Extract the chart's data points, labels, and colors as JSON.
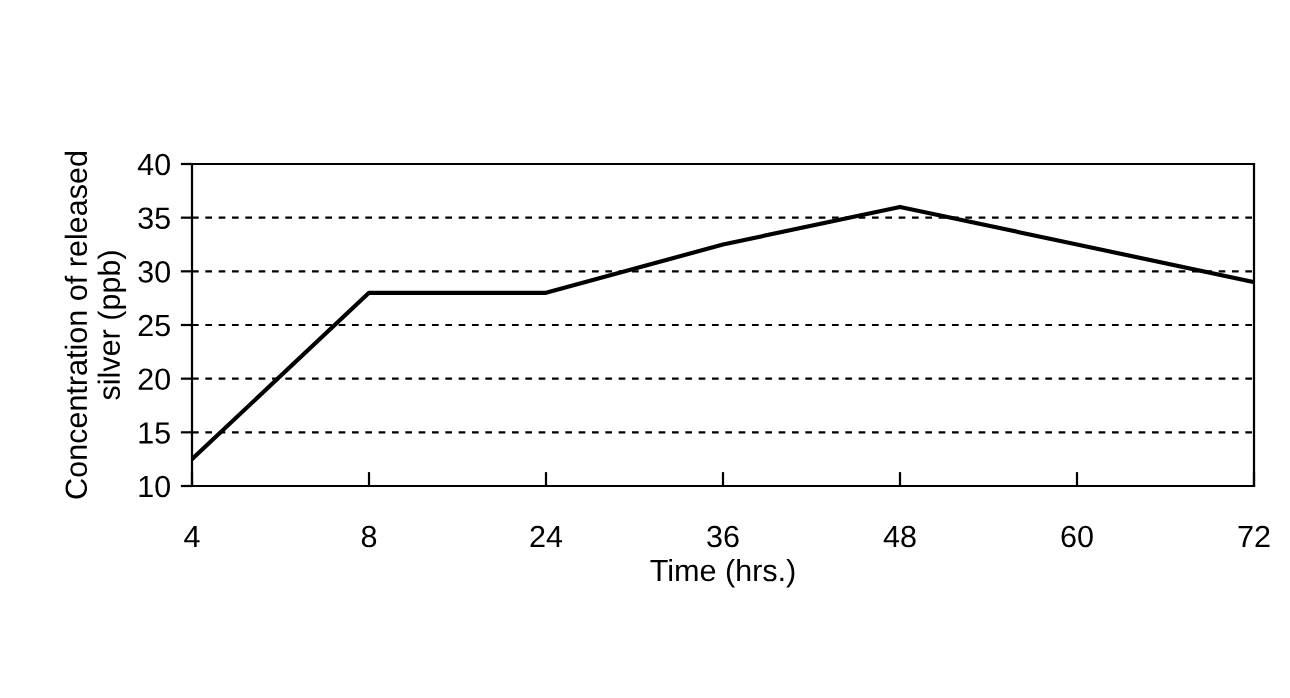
{
  "chart_data": {
    "type": "line",
    "xlabel": "Time (hrs.)",
    "ylabel": "Concentration of released\nsilver (ppb)",
    "categories": [
      "4",
      "8",
      "24",
      "36",
      "48",
      "60",
      "72"
    ],
    "series": [
      {
        "color": "#000000",
        "values": [
          12.5,
          28,
          28,
          32.5,
          36,
          32.5,
          29
        ]
      }
    ],
    "ylim": [
      10,
      40
    ],
    "yticks": [
      10,
      15,
      20,
      25,
      30,
      35,
      40
    ],
    "grid": "y",
    "line_style": "solid",
    "marker": "none",
    "legend": false
  }
}
